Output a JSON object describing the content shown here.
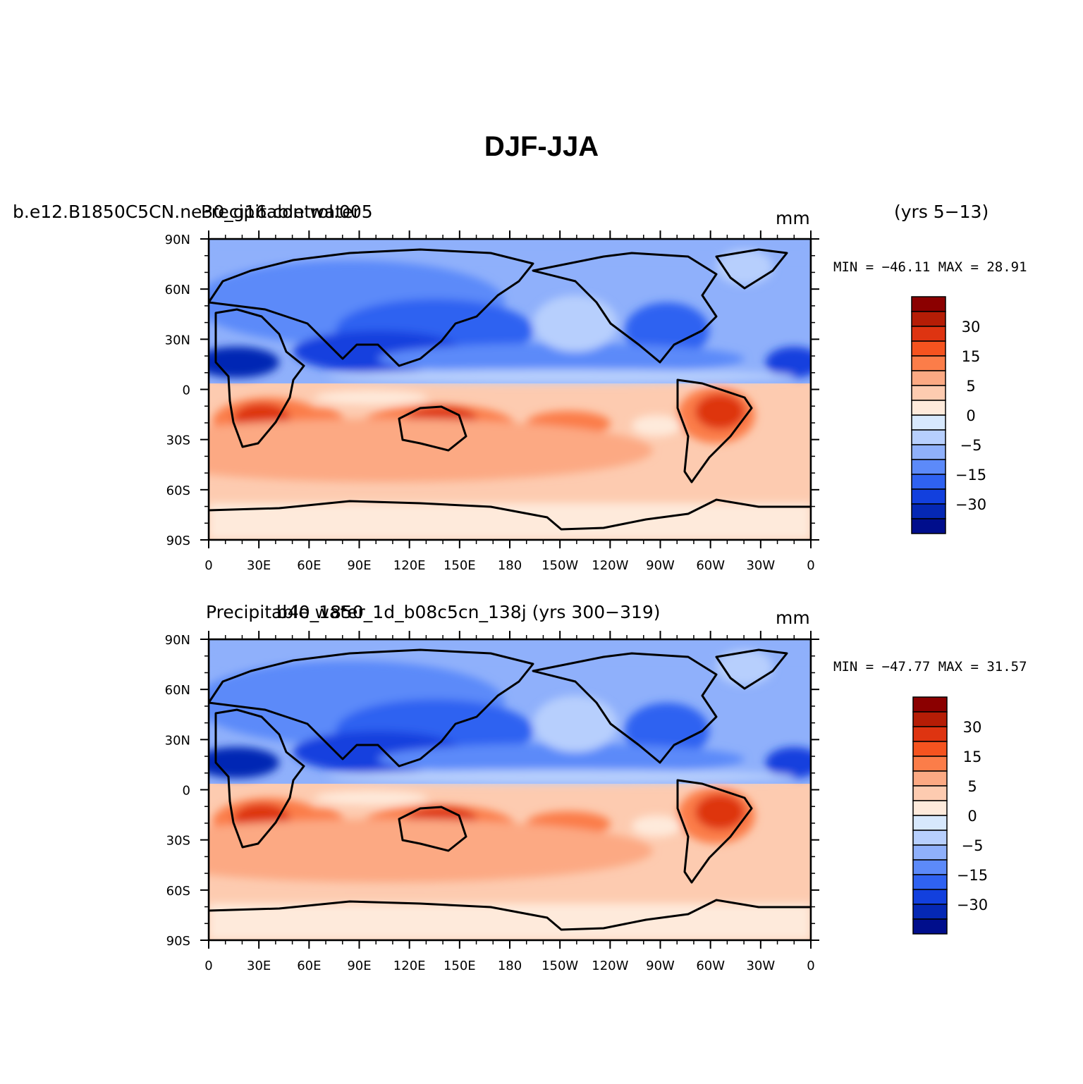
{
  "title": "DJF-JJA",
  "panels": [
    {
      "left_title": "b.e12.B1850C5CN.ne30_g16.control.005",
      "overlay_title": "Precipitable water",
      "units": "mm",
      "years": "(yrs 5−13)",
      "stats": "MIN = −46.11  MAX =  28.91",
      "lat_ticks": [
        "90N",
        "60N",
        "30N",
        "0",
        "30S",
        "60S",
        "90S"
      ],
      "lon_ticks": [
        "0",
        "30E",
        "60E",
        "90E",
        "120E",
        "150E",
        "180",
        "150W",
        "120W",
        "90W",
        "60W",
        "30W",
        "0"
      ]
    },
    {
      "left_title": "Precipitable water",
      "overlay_title": "b40_1850_1d_b08c5cn_138j (yrs 300−319)",
      "units": "mm",
      "years": "",
      "stats": "MIN = −47.77  MAX =  31.57",
      "lat_ticks": [
        "90N",
        "60N",
        "30N",
        "0",
        "30S",
        "60S",
        "90S"
      ],
      "lon_ticks": [
        "0",
        "30E",
        "60E",
        "90E",
        "120E",
        "150E",
        "180",
        "150W",
        "120W",
        "90W",
        "60W",
        "30W",
        "0"
      ]
    }
  ],
  "colorbar": {
    "labels": [
      "30",
      "15",
      "5",
      "0",
      "−5",
      "−15",
      "−30"
    ],
    "colors": [
      "#8b0000",
      "#b51d06",
      "#de3411",
      "#f5531f",
      "#fb7d49",
      "#fca983",
      "#fdcbb0",
      "#feeadb",
      "#d7e8fd",
      "#b7cffd",
      "#8fb0fb",
      "#5c8af9",
      "#2f62f1",
      "#1240de",
      "#0528b4",
      "#000e8c"
    ]
  },
  "legend_icon": "color-scale-icon"
}
